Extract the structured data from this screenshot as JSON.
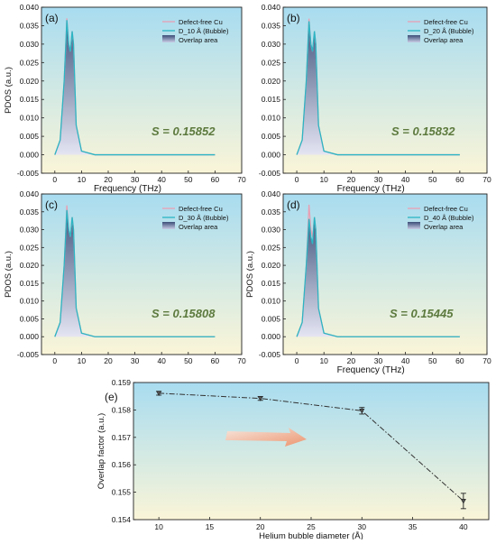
{
  "colors": {
    "defect_free": "#e8a0b4",
    "bubble": "#2bb6c4",
    "overlap_dark": "#3b4e78",
    "overlap_light": "#e4e4f4",
    "s_text": "#5d7a3e",
    "bg_top": "#a8dcf0",
    "bg_bottom": "#faf5d8",
    "line_e": "#333333",
    "arrow": "#f0a07a"
  },
  "panels": [
    {
      "label": "(a)",
      "s_text": "S = 0.15852",
      "legend": [
        "Defect-free Cu",
        "D_10 Å (Bubble)",
        "Overlap area"
      ],
      "ylabel": "PDOS (a.u.)",
      "xlabel": "Frequency (THz)",
      "xticks": [
        "0",
        "10",
        "20",
        "30",
        "40",
        "50",
        "60",
        "70"
      ],
      "yticks": [
        "-0.005",
        "0.000",
        "0.005",
        "0.010",
        "0.015",
        "0.020",
        "0.025",
        "0.030",
        "0.035",
        "0.040"
      ],
      "peaks": {
        "p1": 0.037,
        "p2": 0.0335,
        "bubble_p1": 0.0365
      }
    },
    {
      "label": "(b)",
      "s_text": "S = 0.15832",
      "legend": [
        "Defect-free Cu",
        "D_20 Å (Bubble)",
        "Overlap area"
      ],
      "ylabel": "",
      "xlabel": "Frequency (THz)",
      "xticks": [
        "0",
        "10",
        "20",
        "30",
        "40",
        "50",
        "60",
        "70"
      ],
      "yticks": [
        "-0.005",
        "0.000",
        "0.005",
        "0.010",
        "0.015",
        "0.020",
        "0.025",
        "0.030",
        "0.035",
        "0.040"
      ],
      "peaks": {
        "p1": 0.0369,
        "p2": 0.0335,
        "bubble_p1": 0.0362
      }
    },
    {
      "label": "(c)",
      "s_text": "S = 0.15808",
      "legend": [
        "Defect-free Cu",
        "D_30 Å (Bubble)",
        "Overlap area"
      ],
      "ylabel": "PDOS (a.u.)",
      "xlabel": "",
      "xticks": [
        "0",
        "10",
        "20",
        "30",
        "40",
        "50",
        "60",
        "70"
      ],
      "yticks": [
        "-0.005",
        "0.000",
        "0.005",
        "0.010",
        "0.015",
        "0.020",
        "0.025",
        "0.030",
        "0.035",
        "0.040"
      ],
      "peaks": {
        "p1": 0.0368,
        "p2": 0.0335,
        "bubble_p1": 0.0355
      }
    },
    {
      "label": "(d)",
      "s_text": "S = 0.15445",
      "legend": [
        "Defect-free Cu",
        "D_40 Å (Bubble)",
        "Overlap area"
      ],
      "ylabel": "PDOS (a.u.)",
      "xlabel": "Frequency (THz)",
      "xticks": [
        "0",
        "10",
        "20",
        "30",
        "40",
        "50",
        "60",
        "70"
      ],
      "yticks": [
        "-0.005",
        "0.000",
        "0.005",
        "0.010",
        "0.015",
        "0.020",
        "0.025",
        "0.030",
        "0.035",
        "0.040"
      ],
      "peaks": {
        "p1": 0.037,
        "p2": 0.0335,
        "bubble_p1": 0.033
      }
    }
  ],
  "panel_e": {
    "label": "(e)",
    "xlabel": "Helium bubble diameter (Å)",
    "ylabel": "Overlap factor (a.u.)",
    "xticks": [
      "10",
      "15",
      "20",
      "25",
      "30",
      "35",
      "40"
    ],
    "yticks": [
      "0.154",
      "0.155",
      "0.156",
      "0.157",
      "0.158",
      "0.159"
    ]
  },
  "chart_data": [
    {
      "type": "area",
      "panel": "(a)",
      "xlim": [
        -5,
        70
      ],
      "ylim": [
        -0.005,
        0.04
      ],
      "series": [
        {
          "name": "Defect-free Cu",
          "x": [
            0,
            2,
            3.5,
            4.5,
            5.2,
            5.8,
            6.5,
            7,
            8,
            10,
            15,
            60
          ],
          "y": [
            0,
            0.004,
            0.02,
            0.037,
            0.03,
            0.028,
            0.0335,
            0.03,
            0.008,
            0.001,
            0,
            0
          ]
        },
        {
          "name": "D_10 Å (Bubble)",
          "x": [
            0,
            2,
            3.5,
            4.5,
            5.2,
            5.8,
            6.5,
            7,
            8,
            10,
            15,
            60
          ],
          "y": [
            0,
            0.004,
            0.02,
            0.0365,
            0.03,
            0.028,
            0.0335,
            0.03,
            0.008,
            0.001,
            0,
            0
          ]
        }
      ],
      "overlap_S": 0.15852
    },
    {
      "type": "area",
      "panel": "(b)",
      "xlim": [
        -5,
        70
      ],
      "ylim": [
        -0.005,
        0.04
      ],
      "series": [
        {
          "name": "Defect-free Cu",
          "x": [
            0,
            2,
            3.5,
            4.5,
            5.2,
            5.8,
            6.5,
            7,
            8,
            10,
            15,
            60
          ],
          "y": [
            0,
            0.004,
            0.02,
            0.0369,
            0.03,
            0.028,
            0.0335,
            0.03,
            0.008,
            0.001,
            0,
            0
          ]
        },
        {
          "name": "D_20 Å (Bubble)",
          "x": [
            0,
            2,
            3.5,
            4.5,
            5.2,
            5.8,
            6.5,
            7,
            8,
            10,
            15,
            60
          ],
          "y": [
            0,
            0.004,
            0.02,
            0.0362,
            0.03,
            0.028,
            0.0335,
            0.03,
            0.008,
            0.001,
            0,
            0
          ]
        }
      ],
      "overlap_S": 0.15832
    },
    {
      "type": "area",
      "panel": "(c)",
      "xlim": [
        -5,
        70
      ],
      "ylim": [
        -0.005,
        0.04
      ],
      "series": [
        {
          "name": "Defect-free Cu",
          "x": [
            0,
            2,
            3.5,
            4.5,
            5.2,
            5.8,
            6.5,
            7,
            8,
            10,
            15,
            60
          ],
          "y": [
            0,
            0.004,
            0.02,
            0.0368,
            0.03,
            0.028,
            0.0335,
            0.03,
            0.008,
            0.001,
            0,
            0
          ]
        },
        {
          "name": "D_30 Å (Bubble)",
          "x": [
            0,
            2,
            3.5,
            4.5,
            5.2,
            5.8,
            6.5,
            7,
            8,
            10,
            15,
            60
          ],
          "y": [
            0,
            0.004,
            0.02,
            0.0355,
            0.03,
            0.028,
            0.0335,
            0.03,
            0.008,
            0.001,
            0,
            0
          ]
        }
      ],
      "overlap_S": 0.15808
    },
    {
      "type": "area",
      "panel": "(d)",
      "xlim": [
        -5,
        70
      ],
      "ylim": [
        -0.005,
        0.04
      ],
      "series": [
        {
          "name": "Defect-free Cu",
          "x": [
            0,
            2,
            3.5,
            4.5,
            5.2,
            5.8,
            6.5,
            7,
            8,
            10,
            15,
            60
          ],
          "y": [
            0,
            0.004,
            0.02,
            0.037,
            0.03,
            0.028,
            0.0335,
            0.03,
            0.008,
            0.001,
            0,
            0
          ]
        },
        {
          "name": "D_40 Å (Bubble)",
          "x": [
            0,
            2,
            3.5,
            4.5,
            5.2,
            5.8,
            6.5,
            7,
            8,
            10,
            15,
            60
          ],
          "y": [
            0,
            0.004,
            0.02,
            0.033,
            0.028,
            0.026,
            0.0335,
            0.03,
            0.008,
            0.001,
            0,
            0
          ]
        }
      ],
      "overlap_S": 0.15445
    },
    {
      "type": "line",
      "panel": "(e)",
      "x": [
        10,
        20,
        30,
        40
      ],
      "y": [
        0.15861,
        0.15842,
        0.15797,
        0.15468
      ],
      "err": [
        7e-05,
        7e-05,
        0.00012,
        0.00028
      ],
      "xlim": [
        7.5,
        42.5
      ],
      "ylim": [
        0.154,
        0.159
      ],
      "xlabel": "Helium bubble diameter (Å)",
      "ylabel": "Overlap factor (a.u.)"
    }
  ]
}
